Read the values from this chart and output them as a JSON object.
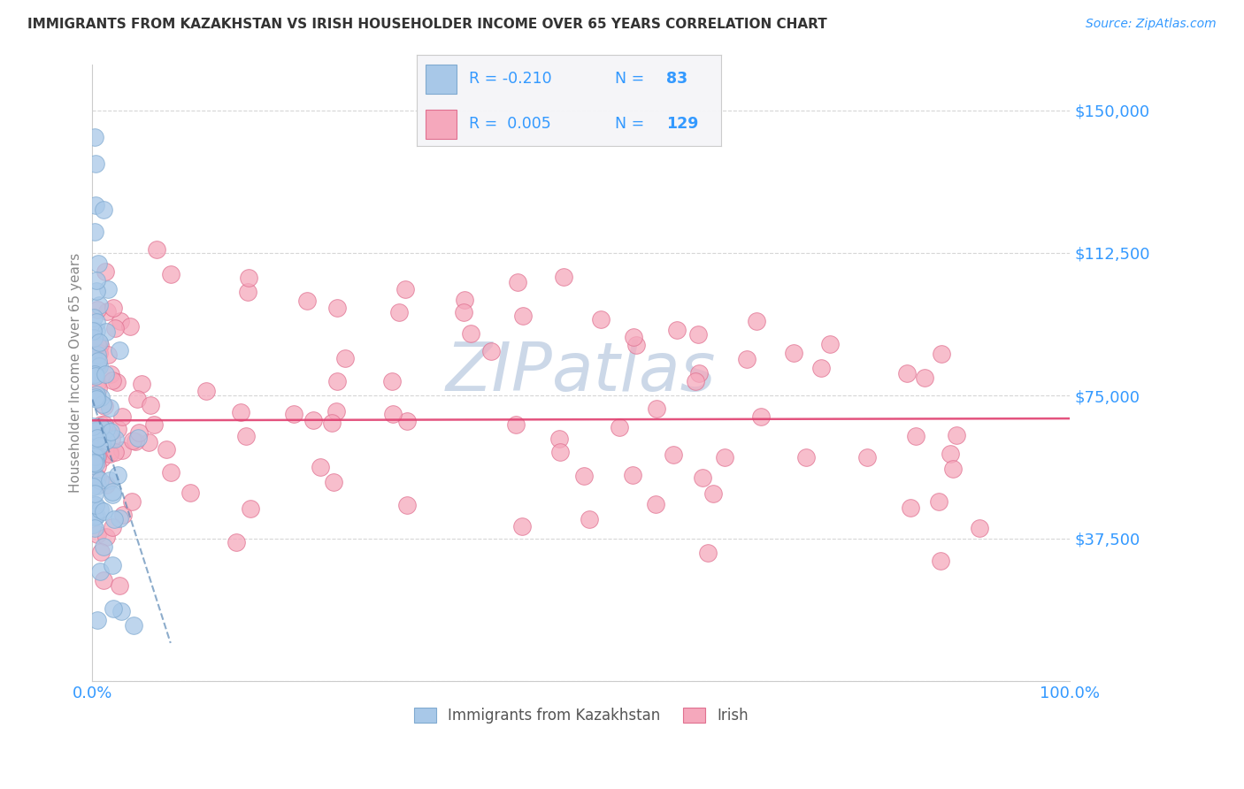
{
  "title": "IMMIGRANTS FROM KAZAKHSTAN VS IRISH HOUSEHOLDER INCOME OVER 65 YEARS CORRELATION CHART",
  "source": "Source: ZipAtlas.com",
  "ylabel": "Householder Income Over 65 years",
  "xlim": [
    0.0,
    100.0
  ],
  "ylim": [
    0,
    162000
  ],
  "yticks": [
    0,
    37500,
    75000,
    112500,
    150000
  ],
  "ytick_labels": [
    "",
    "$37,500",
    "$75,000",
    "$112,500",
    "$150,000"
  ],
  "color_blue": "#a8c8e8",
  "color_pink": "#f5a8bc",
  "color_blue_edge": "#80aad0",
  "color_pink_edge": "#e07090",
  "color_trend_blue": "#5080b0",
  "color_trend_pink": "#e04070",
  "color_axis_labels": "#3399ff",
  "color_ylabel": "#888888",
  "color_title": "#333333",
  "watermark_color": "#ccd8e8",
  "background_color": "#ffffff",
  "legend_box_color": "#f5f5f8",
  "legend_border_color": "#cccccc"
}
